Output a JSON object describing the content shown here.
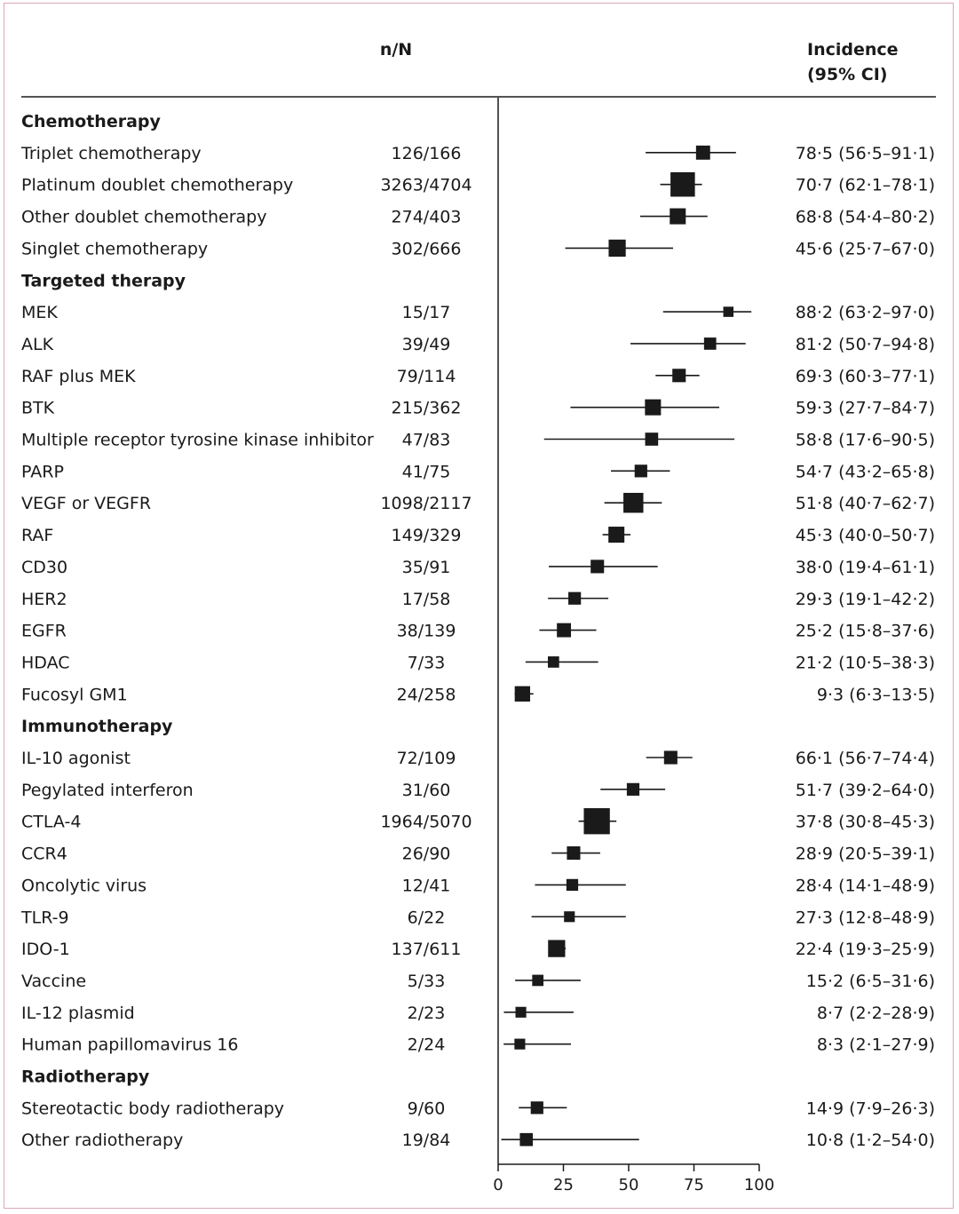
{
  "chart_data": {
    "type": "forest",
    "header": {
      "count_label": "n/N",
      "incidence_label_line1": "Incidence",
      "incidence_label_line2": "(95% CI)"
    },
    "x_axis": {
      "range": [
        0,
        100
      ],
      "ticks": [
        "0",
        "25",
        "50",
        "75",
        "100"
      ]
    },
    "colors": {
      "ink": "#1a1a1a",
      "frame": "#d9a7b4"
    },
    "rows": [
      {
        "kind": "section",
        "label": "Chemotherapy"
      },
      {
        "kind": "item",
        "label": "Triplet chemotherapy",
        "count": "126/166",
        "incidence": 78.5,
        "lo": 56.5,
        "hi": 91.1,
        "ci_text": "78·5 (56·5–91·1)",
        "weight": 0.7
      },
      {
        "kind": "item",
        "label": "Platinum doublet chemotherapy",
        "count": "3263/4704",
        "incidence": 70.7,
        "lo": 62.1,
        "hi": 78.1,
        "ci_text": "70·7 (62·1–78·1)",
        "weight": 3.0
      },
      {
        "kind": "item",
        "label": "Other doublet chemotherapy",
        "count": "274/403",
        "incidence": 68.8,
        "lo": 54.4,
        "hi": 80.2,
        "ci_text": "68·8 (54·4–80·2)",
        "weight": 1.0
      },
      {
        "kind": "item",
        "label": "Singlet chemotherapy",
        "count": "302/666",
        "incidence": 45.6,
        "lo": 25.7,
        "hi": 67.0,
        "ci_text": "45·6 (25·7–67·0)",
        "weight": 1.2
      },
      {
        "kind": "section",
        "label": "Targeted therapy"
      },
      {
        "kind": "item",
        "label": "MEK",
        "count": "15/17",
        "incidence": 88.2,
        "lo": 63.2,
        "hi": 97.0,
        "ci_text": "88·2 (63·2–97·0)",
        "weight": 0.25
      },
      {
        "kind": "item",
        "label": "ALK",
        "count": "39/49",
        "incidence": 81.2,
        "lo": 50.7,
        "hi": 94.8,
        "ci_text": "81·2 (50·7–94·8)",
        "weight": 0.45
      },
      {
        "kind": "item",
        "label": "RAF plus MEK",
        "count": "79/114",
        "incidence": 69.3,
        "lo": 60.3,
        "hi": 77.1,
        "ci_text": "69·3 (60·3–77·1)",
        "weight": 0.6
      },
      {
        "kind": "item",
        "label": "BTK",
        "count": "215/362",
        "incidence": 59.3,
        "lo": 27.7,
        "hi": 84.7,
        "ci_text": "59·3 (27·7–84·7)",
        "weight": 1.0
      },
      {
        "kind": "item",
        "label": "Multiple receptor tyrosine kinase inhibitor",
        "count": "47/83",
        "incidence": 58.8,
        "lo": 17.6,
        "hi": 90.5,
        "ci_text": "58·8 (17·6–90·5)",
        "weight": 0.55
      },
      {
        "kind": "item",
        "label": "PARP",
        "count": "41/75",
        "incidence": 54.7,
        "lo": 43.2,
        "hi": 65.8,
        "ci_text": "54·7 (43·2–65·8)",
        "weight": 0.5
      },
      {
        "kind": "item",
        "label": "VEGF or VEGFR",
        "count": "1098/2117",
        "incidence": 51.8,
        "lo": 40.7,
        "hi": 62.7,
        "ci_text": "51·8 (40·7–62·7)",
        "weight": 1.8
      },
      {
        "kind": "item",
        "label": "RAF",
        "count": "149/329",
        "incidence": 45.3,
        "lo": 40.0,
        "hi": 50.7,
        "ci_text": "45·3 (40·0–50·7)",
        "weight": 1.0
      },
      {
        "kind": "item",
        "label": "CD30",
        "count": "35/91",
        "incidence": 38.0,
        "lo": 19.4,
        "hi": 61.1,
        "ci_text": "38·0 (19·4–61·1)",
        "weight": 0.6
      },
      {
        "kind": "item",
        "label": "HER2",
        "count": "17/58",
        "incidence": 29.3,
        "lo": 19.1,
        "hi": 42.2,
        "ci_text": "29·3 (19·1–42·2)",
        "weight": 0.5
      },
      {
        "kind": "item",
        "label": "EGFR",
        "count": "38/139",
        "incidence": 25.2,
        "lo": 15.8,
        "hi": 37.6,
        "ci_text": "25·2 (15·8–37·6)",
        "weight": 0.7
      },
      {
        "kind": "item",
        "label": "HDAC",
        "count": "7/33",
        "incidence": 21.2,
        "lo": 10.5,
        "hi": 38.3,
        "ci_text": "21·2 (10·5–38·3)",
        "weight": 0.35
      },
      {
        "kind": "item",
        "label": "Fucosyl GM1",
        "count": "24/258",
        "incidence": 9.3,
        "lo": 6.3,
        "hi": 13.5,
        "ci_text": "9·3 (6·3–13·5)",
        "weight": 0.9
      },
      {
        "kind": "section",
        "label": "Immunotherapy"
      },
      {
        "kind": "item",
        "label": "IL-10 agonist",
        "count": "72/109",
        "incidence": 66.1,
        "lo": 56.7,
        "hi": 74.4,
        "ci_text": "66·1 (56·7–74·4)",
        "weight": 0.6
      },
      {
        "kind": "item",
        "label": "Pegylated interferon",
        "count": "31/60",
        "incidence": 51.7,
        "lo": 39.2,
        "hi": 64.0,
        "ci_text": "51·7 (39·2–64·0)",
        "weight": 0.5
      },
      {
        "kind": "item",
        "label": "CTLA-4",
        "count": "1964/5070",
        "incidence": 37.8,
        "lo": 30.8,
        "hi": 45.3,
        "ci_text": "37·8 (30·8–45·3)",
        "weight": 3.5
      },
      {
        "kind": "item",
        "label": "CCR4",
        "count": "26/90",
        "incidence": 28.9,
        "lo": 20.5,
        "hi": 39.1,
        "ci_text": "28·9 (20·5–39·1)",
        "weight": 0.6
      },
      {
        "kind": "item",
        "label": "Oncolytic virus",
        "count": "12/41",
        "incidence": 28.4,
        "lo": 14.1,
        "hi": 48.9,
        "ci_text": "28·4 (14·1–48·9)",
        "weight": 0.4
      },
      {
        "kind": "item",
        "label": "TLR-9",
        "count": "6/22",
        "incidence": 27.3,
        "lo": 12.8,
        "hi": 48.9,
        "ci_text": "27·3 (12·8–48·9)",
        "weight": 0.3
      },
      {
        "kind": "item",
        "label": "IDO-1",
        "count": "137/611",
        "incidence": 22.4,
        "lo": 19.3,
        "hi": 25.9,
        "ci_text": "22·4 (19·3–25·9)",
        "weight": 1.2
      },
      {
        "kind": "item",
        "label": "Vaccine",
        "count": "5/33",
        "incidence": 15.2,
        "lo": 6.5,
        "hi": 31.6,
        "ci_text": "15·2 (6·5–31·6)",
        "weight": 0.35
      },
      {
        "kind": "item",
        "label": "IL-12 plasmid",
        "count": "2/23",
        "incidence": 8.7,
        "lo": 2.2,
        "hi": 28.9,
        "ci_text": "8·7 (2·2–28·9)",
        "weight": 0.3
      },
      {
        "kind": "item",
        "label": "Human papillomavirus 16",
        "count": "2/24",
        "incidence": 8.3,
        "lo": 2.1,
        "hi": 27.9,
        "ci_text": "8·3 (2·1–27·9)",
        "weight": 0.3
      },
      {
        "kind": "section",
        "label": "Radiotherapy"
      },
      {
        "kind": "item",
        "label": "Stereotactic body radiotherapy",
        "count": "9/60",
        "incidence": 14.9,
        "lo": 7.9,
        "hi": 26.3,
        "ci_text": "14·9 (7·9–26·3)",
        "weight": 0.5
      },
      {
        "kind": "item",
        "label": "Other radiotherapy",
        "count": "19/84",
        "incidence": 10.8,
        "lo": 1.2,
        "hi": 54.0,
        "ci_text": "10·8 (1·2–54·0)",
        "weight": 0.55
      }
    ]
  }
}
